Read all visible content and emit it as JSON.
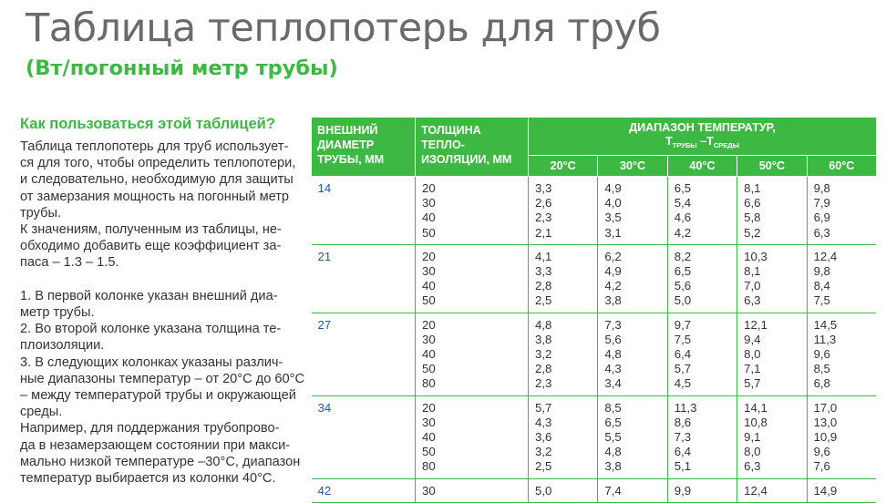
{
  "title": "Таблица теплопотерь для труб",
  "subtitle": "(Вт/погонный метр трубы)",
  "left": {
    "how_title": "Как пользоваться этой таблицей?",
    "p1": [
      "Таблица теплопотерь для труб использует-",
      "ся для того, чтобы определить теплопотери,",
      "и следовательно, необходимую для защиты",
      "от замерзания мощность на погонный метр",
      "трубы."
    ],
    "p2": [
      "К значениям, полученным из таблицы, не-",
      "обходимо добавить еще коэффициент за-",
      "паса – 1.3 – 1.5."
    ],
    "p3": [
      "1.    В первой колонке указан внешний диа-",
      "метр трубы.",
      "2.    Во второй колонке указана толщина те-",
      "плоизоляции.",
      "3.    В следующих колонках указаны различ-",
      "ные диапазоны температур – от 20°С до 60°С",
      "– между температурой трубы и окружающей",
      "среды."
    ],
    "p4": [
      "Например, для поддержания трубопрово-",
      "да в незамерзающем состоянии при макси-",
      "мально низкой температуре –30°С, диапазон",
      "температур выбирается из колонки 40°С."
    ]
  },
  "table": {
    "h_outer": [
      "ВНЕШНИЙ",
      "ДИАМЕТР",
      "ТРУБЫ, ММ"
    ],
    "h_thick": [
      "ТОЛЩИНА",
      "ТЕПЛО-",
      "ИЗОЛЯЦИИ, ММ"
    ],
    "h_range": "ДИАПАЗОН ТЕМПЕРАТУР,",
    "h_formula": {
      "t1": "Т",
      "s1": "ТРУБЫ",
      "mid": " –Т",
      "s2": "СРЕДЫ"
    },
    "temps": [
      "20°С",
      "30°С",
      "40°С",
      "50°С",
      "60°С"
    ],
    "rows": [
      {
        "od": "14",
        "thick": [
          "20",
          "30",
          "40",
          "50"
        ],
        "v": [
          [
            "3,3",
            "2,6",
            "2,3",
            "2,1"
          ],
          [
            "4,9",
            "4,0",
            "3,5",
            "3,1"
          ],
          [
            "6,5",
            "5,4",
            "4,6",
            "4,2"
          ],
          [
            "8,1",
            "6,6",
            "5,8",
            "5,2"
          ],
          [
            "9,8",
            "7,9",
            "6,9",
            "6,3"
          ]
        ]
      },
      {
        "od": "21",
        "thick": [
          "20",
          "30",
          "40",
          "50"
        ],
        "v": [
          [
            "4,1",
            "3,3",
            "2,8",
            "2,5"
          ],
          [
            "6,2",
            "4,9",
            "4,2",
            "3,8"
          ],
          [
            "8,2",
            "6,5",
            "5,6",
            "5,0"
          ],
          [
            "10,3",
            "8,1",
            "7,0",
            "6,3"
          ],
          [
            "12,4",
            "9,8",
            "8,4",
            "7,5"
          ]
        ]
      },
      {
        "od": "27",
        "thick": [
          "20",
          "30",
          "40",
          "50",
          "80"
        ],
        "v": [
          [
            "4,8",
            "3,8",
            "3,2",
            "2,8",
            "2,3"
          ],
          [
            "7,3",
            "5,6",
            "4,8",
            "4,3",
            "3,4"
          ],
          [
            "9,7",
            "7,5",
            "6,4",
            "5,7",
            "4,5"
          ],
          [
            "12,1",
            "9,4",
            "8,0",
            "7,1",
            "5,7"
          ],
          [
            "14,5",
            "11,3",
            "9,6",
            "8,5",
            "6,8"
          ]
        ]
      },
      {
        "od": "34",
        "thick": [
          "20",
          "30",
          "40",
          "50",
          "80"
        ],
        "v": [
          [
            "5,7",
            "4,3",
            "3,6",
            "3,2",
            "2,5"
          ],
          [
            "8,5",
            "6,5",
            "5,5",
            "4,8",
            "3,8"
          ],
          [
            "11,3",
            "8,6",
            "7,3",
            "6,4",
            "5,1"
          ],
          [
            "14,1",
            "10,8",
            "9,1",
            "8,0",
            "6,3"
          ],
          [
            "17,0",
            "13,0",
            "10,9",
            "9,6",
            "7,6"
          ]
        ]
      },
      {
        "od": "42",
        "thick": [
          "30"
        ],
        "v": [
          [
            "5,0"
          ],
          [
            "7,4"
          ],
          [
            "9,9"
          ],
          [
            "12,4"
          ],
          [
            "14,9"
          ]
        ]
      }
    ]
  },
  "colors": {
    "green": "#3db842",
    "title_gray": "#6a6a6a",
    "diameter_blue": "#1d5aa3"
  }
}
